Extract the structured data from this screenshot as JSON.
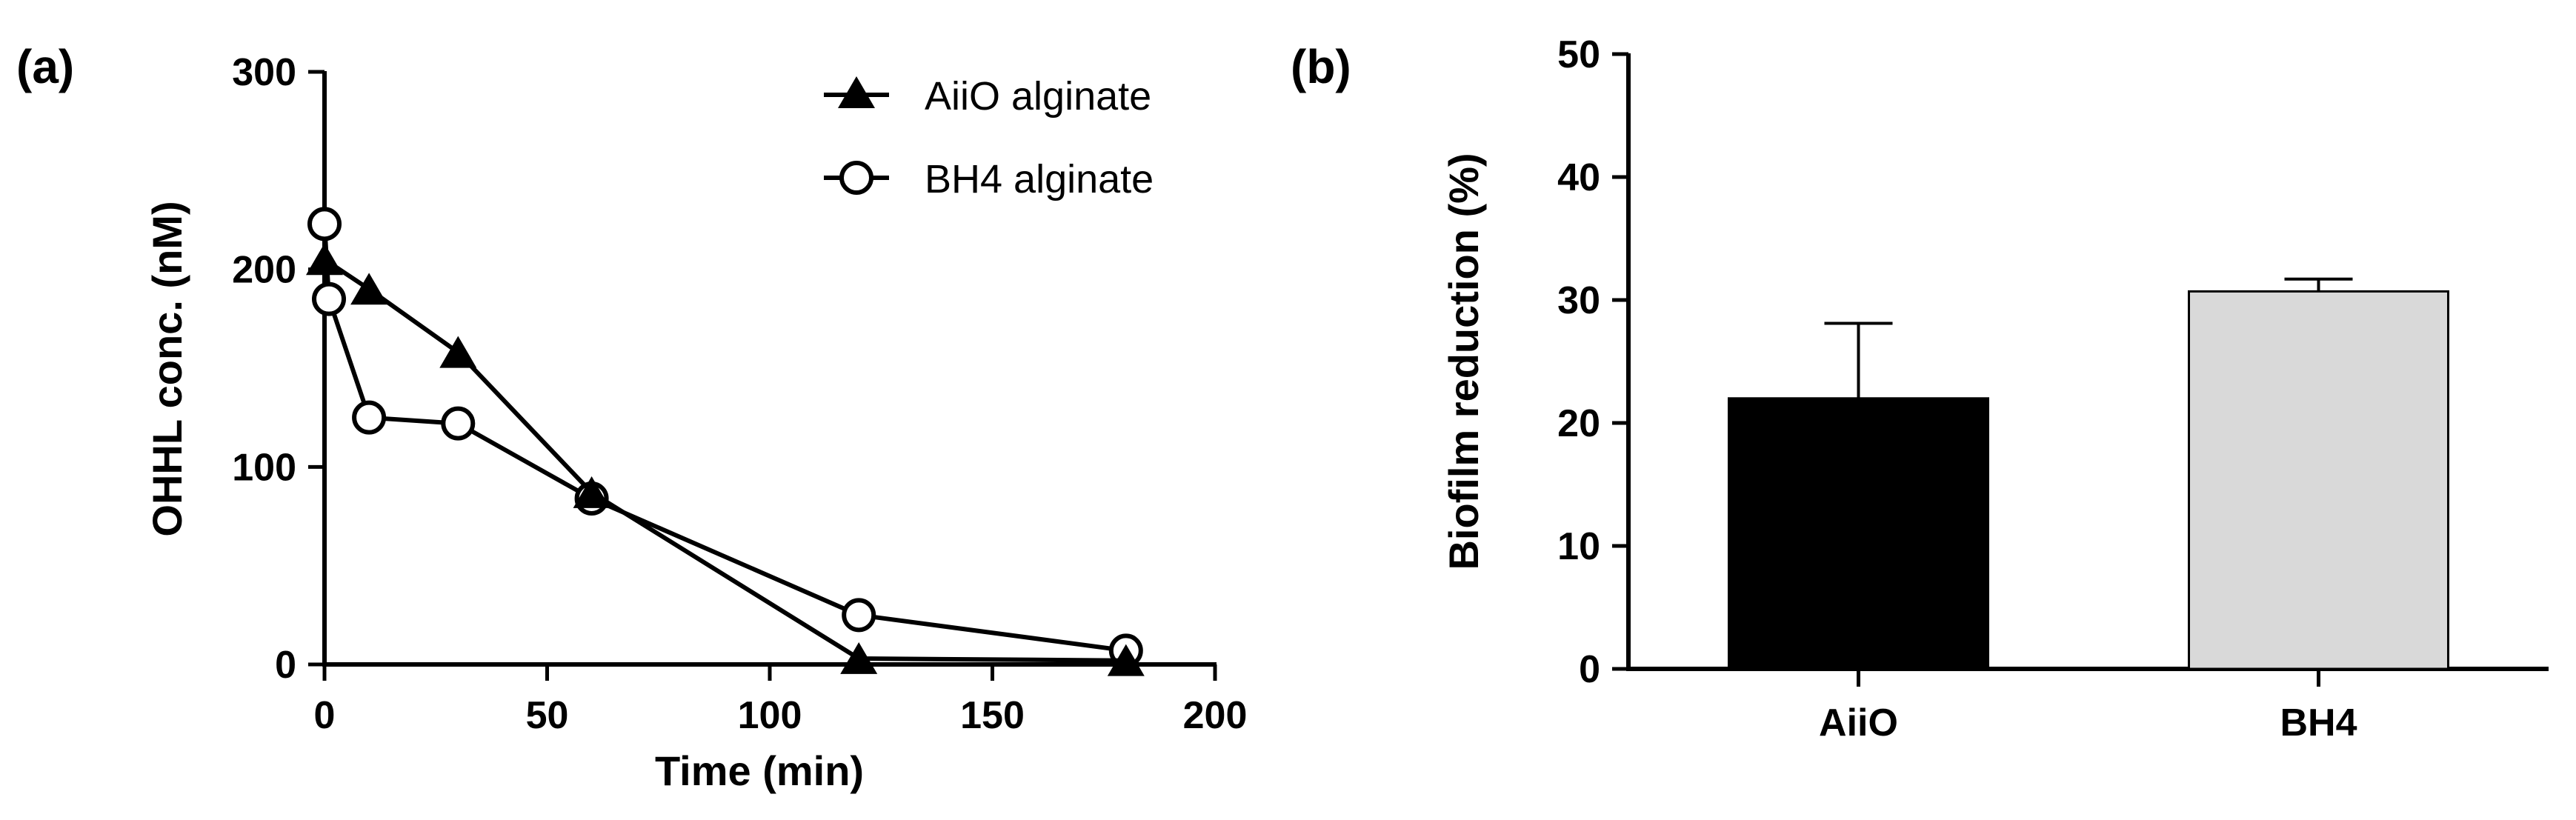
{
  "chart_data": [
    {
      "panel_label": "(a)",
      "type": "line",
      "xlabel": "Time (min)",
      "ylabel": "OHHL conc. (nM)",
      "xlim": [
        0,
        200
      ],
      "ylim": [
        0,
        300
      ],
      "xticks": [
        "0",
        "50",
        "100",
        "150",
        "200"
      ],
      "yticks": [
        "0",
        "100",
        "200",
        "300"
      ],
      "grid": false,
      "legend_position": "top-right",
      "series": [
        {
          "name": "AiiO alginate",
          "marker": "filled-triangle",
          "color": "#000000",
          "x": [
            0,
            10,
            30,
            60,
            120,
            180
          ],
          "y": [
            205,
            190,
            158,
            87,
            3,
            2
          ]
        },
        {
          "name": "BH4 alginate",
          "marker": "open-circle",
          "color": "#000000",
          "x": [
            0,
            1,
            10,
            30,
            60,
            120,
            180
          ],
          "y": [
            223,
            185,
            125,
            122,
            84,
            25,
            7
          ]
        }
      ]
    },
    {
      "panel_label": "(b)",
      "type": "bar",
      "xlabel": "",
      "ylabel": "Biofilm reduction (%)",
      "ylim": [
        0,
        50
      ],
      "yticks": [
        "0",
        "10",
        "20",
        "30",
        "40",
        "50"
      ],
      "grid": false,
      "categories": [
        "AiiO",
        "BH4"
      ],
      "values": [
        22,
        30.7
      ],
      "errors": [
        6.1,
        1.0
      ],
      "bar_colors": [
        "#000000",
        "#d9d9d9"
      ]
    }
  ]
}
